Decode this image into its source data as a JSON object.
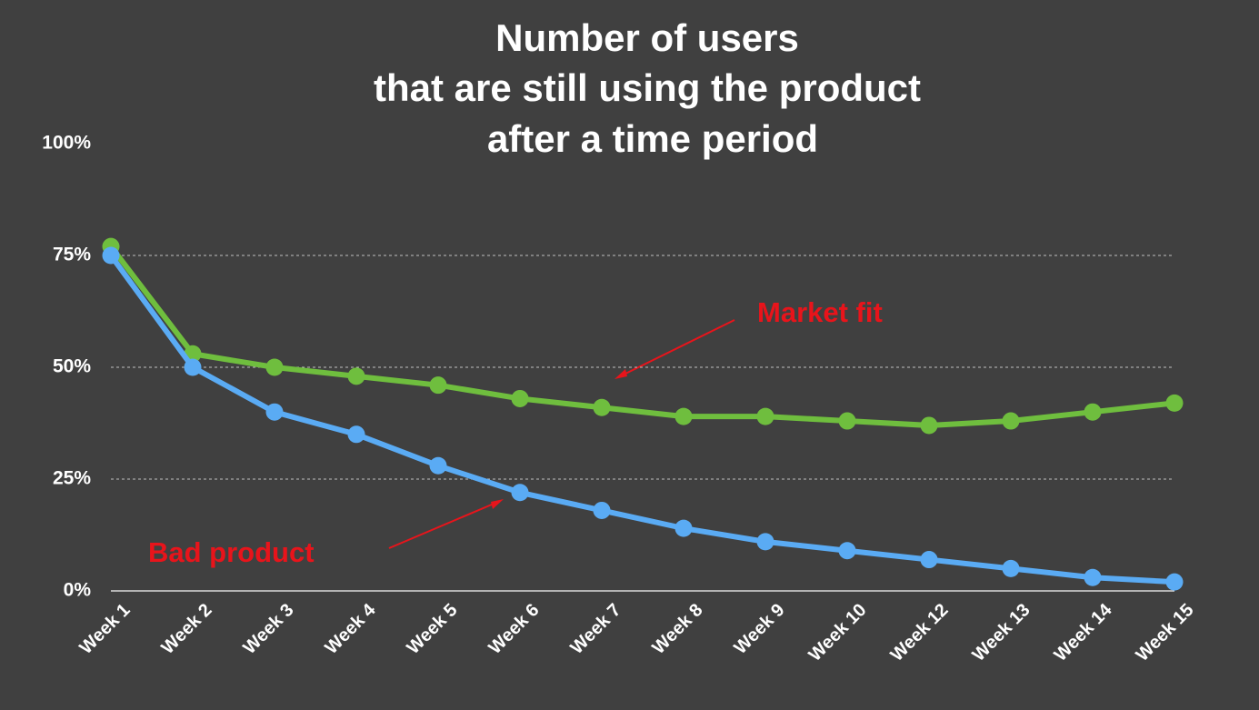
{
  "chart_data": {
    "type": "line",
    "title": [
      "Number of users",
      "that are still using the product",
      "after a time period"
    ],
    "categories": [
      "Week 1",
      "Week 2",
      "Week 3",
      "Week 4",
      "Week 5",
      "Week 6",
      "Week 7",
      "Week 8",
      "Week 9",
      "Week 10",
      "Week 12",
      "Week 13",
      "Week 14",
      "Week 15"
    ],
    "series": [
      {
        "name": "Market fit",
        "color": "#6fbe3e",
        "values": [
          77,
          53,
          50,
          48,
          46,
          43,
          41,
          39,
          39,
          38,
          37,
          38,
          40,
          42
        ]
      },
      {
        "name": "Bad product",
        "color": "#5aabf4",
        "values": [
          75,
          50,
          40,
          35,
          28,
          22,
          18,
          14,
          11,
          9,
          7,
          5,
          3,
          2
        ]
      }
    ],
    "ylim": [
      0,
      100
    ],
    "yticks": [
      {
        "value": 0,
        "label": "0%"
      },
      {
        "value": 25,
        "label": "25%"
      },
      {
        "value": 50,
        "label": "50%"
      },
      {
        "value": 75,
        "label": "75%"
      },
      {
        "value": 100,
        "label": "100%"
      }
    ],
    "grid": true,
    "annotation_color": "#e8141b"
  }
}
